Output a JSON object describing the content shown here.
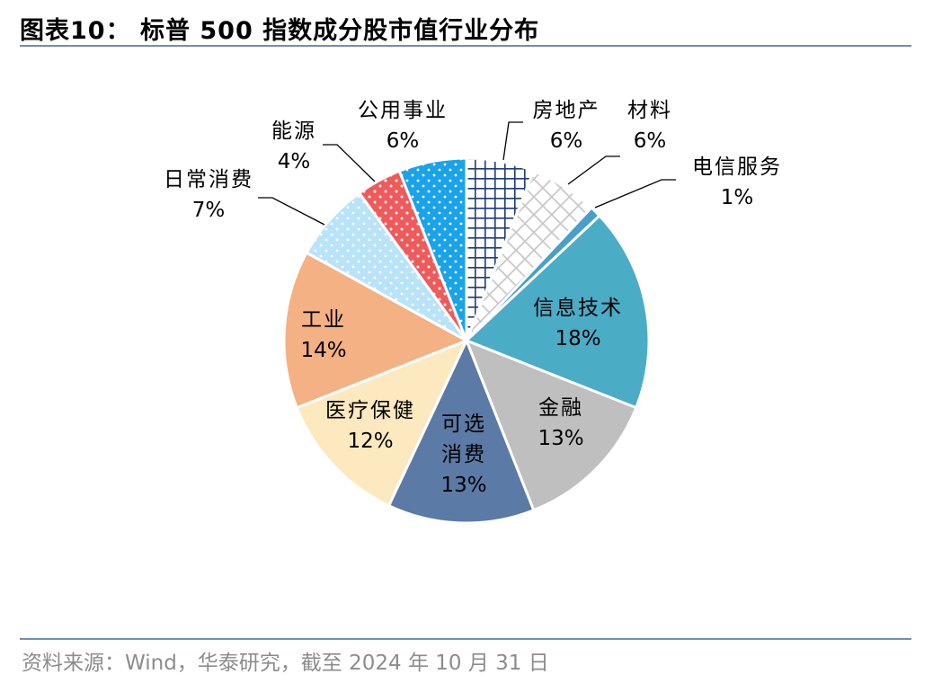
{
  "title": "图表10：  标普 500 指数成分股市值行业分布",
  "source": "资料来源：Wind，华泰研究，截至 2024 年 10 月 31 日",
  "colors": {
    "rule": "#6f8fb0",
    "source_text": "#8c8c8c"
  },
  "chart_data": {
    "type": "pie",
    "unit": "%",
    "slices": [
      {
        "label": "房地产",
        "value": 6,
        "value_label": "6%",
        "color": "#1f3d7a",
        "pattern": "grid-dark"
      },
      {
        "label": "材料",
        "value": 6,
        "value_label": "6%",
        "color": "#bfbfbf",
        "pattern": "grid-light"
      },
      {
        "label": "电信服务",
        "value": 1,
        "value_label": "1%",
        "color": "#4a9fca",
        "pattern": "solid"
      },
      {
        "label": "信息技术",
        "value": 18,
        "value_label": "18%",
        "color": "#4bacc6",
        "pattern": "solid"
      },
      {
        "label": "金融",
        "value": 13,
        "value_label": "13%",
        "color": "#bfbfbf",
        "pattern": "solid"
      },
      {
        "label": "可选消费",
        "value": 13,
        "value_label": "13%",
        "color": "#5b7aa6",
        "pattern": "solid"
      },
      {
        "label": "医疗保健",
        "value": 12,
        "value_label": "12%",
        "color": "#fde9c0",
        "pattern": "solid"
      },
      {
        "label": "工业",
        "value": 14,
        "value_label": "14%",
        "color": "#f4b183",
        "pattern": "solid"
      },
      {
        "label": "日常消费",
        "value": 7,
        "value_label": "7%",
        "color": "#b9e3f8",
        "pattern": "dots-light"
      },
      {
        "label": "能源",
        "value": 4,
        "value_label": "4%",
        "color": "#f05a5a",
        "pattern": "dots-red"
      },
      {
        "label": "公用事业",
        "value": 6,
        "value_label": "6%",
        "color": "#1aa3e8",
        "pattern": "dots-blue"
      }
    ],
    "start_angle_deg": 0,
    "direction": "clockwise",
    "legend": "none"
  }
}
